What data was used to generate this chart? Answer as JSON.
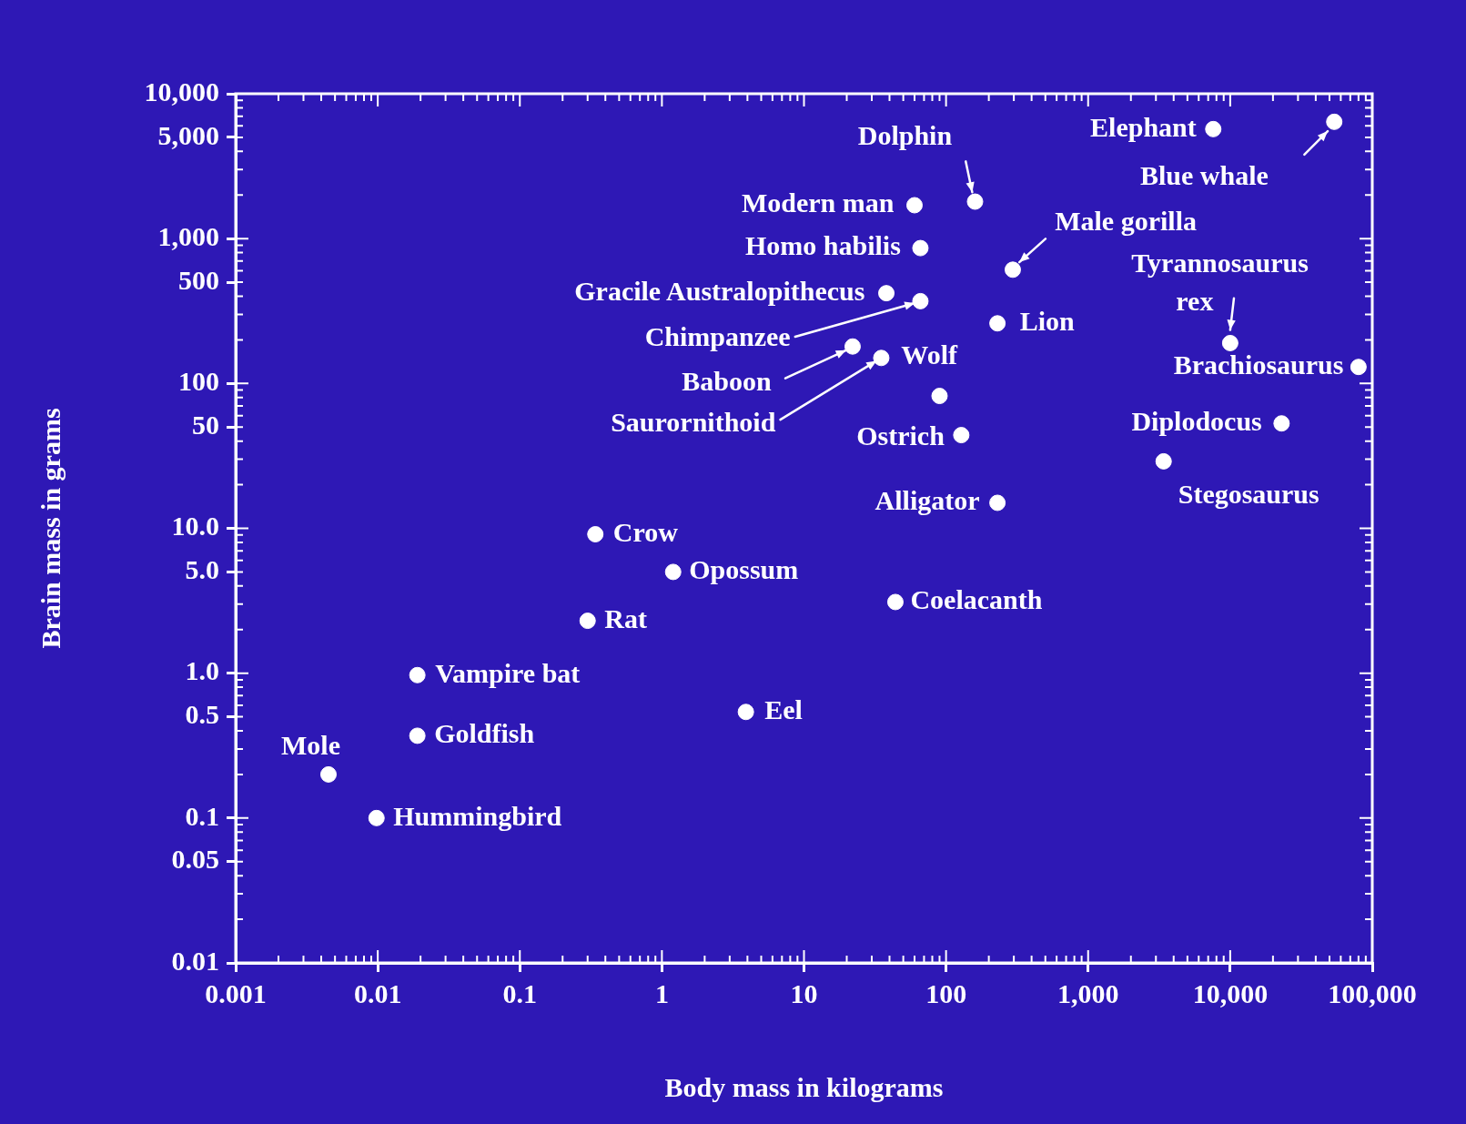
{
  "chart_data": {
    "type": "scatter",
    "xlabel": "Body mass in kilograms",
    "ylabel": "Brain mass in grams",
    "x": [
      7600,
      54000,
      160,
      60,
      66,
      295,
      38,
      66,
      230,
      10000,
      22,
      35,
      90,
      80000,
      23000,
      128,
      3400,
      230,
      0.34,
      1.2,
      44,
      0.3,
      0.019,
      3.9,
      0.019,
      0.0045,
      0.0098
    ],
    "values": [
      5700,
      6400,
      1800,
      1700,
      860,
      610,
      420,
      370,
      260,
      190,
      180,
      150,
      82,
      130,
      53,
      44,
      29,
      15,
      9.1,
      5.0,
      3.1,
      2.3,
      0.97,
      0.54,
      0.37,
      0.2,
      0.1
    ],
    "color": "#ffffff",
    "marker": "circle",
    "log": "xy",
    "grid": false,
    "legend": false,
    "xlim": [
      0.001,
      100000
    ],
    "ylim": [
      0.01,
      10000
    ],
    "xticks": [
      0.001,
      0.01,
      0.1,
      1,
      10,
      100,
      {
        "value": 1000,
        "label": "1,000"
      },
      {
        "value": 10000,
        "label": "10,000"
      },
      {
        "value": 100000,
        "label": "100,000"
      }
    ],
    "yticks": [
      0.01,
      0.05,
      0.1,
      0.5,
      {
        "value": 1,
        "label": "1.0"
      },
      {
        "value": 5,
        "label": "5.0"
      },
      {
        "value": 10,
        "label": "10.0"
      },
      50,
      100,
      500,
      {
        "value": 1000,
        "label": "1,000"
      },
      {
        "value": 5000,
        "label": "5,000"
      },
      {
        "value": 10000,
        "label": "10,000"
      }
    ],
    "annotations": [
      {
        "text": "Elephant",
        "x": 7600,
        "y": 5700
      },
      {
        "text": "Blue whale",
        "x": 54000,
        "y": 6400
      },
      {
        "text": "Dolphin",
        "x": 160,
        "y": 1800
      },
      {
        "text": "Modern man",
        "x": 60,
        "y": 1700
      },
      {
        "text": "Homo habilis",
        "x": 66,
        "y": 860
      },
      {
        "text": "Male gorilla",
        "x": 295,
        "y": 610
      },
      {
        "text": "Gracile Australopithecus",
        "x": 38,
        "y": 420
      },
      {
        "text": "Chimpanzee",
        "x": 66,
        "y": 370
      },
      {
        "text": "Lion",
        "x": 230,
        "y": 260
      },
      {
        "text": "Tyrannosaurus rex",
        "x": 10000,
        "y": 190
      },
      {
        "text": "Baboon",
        "x": 22,
        "y": 180
      },
      {
        "text": "Saurornithoid",
        "x": 35,
        "y": 150
      },
      {
        "text": "Wolf",
        "x": 90,
        "y": 82
      },
      {
        "text": "Brachiosaurus",
        "x": 80000,
        "y": 130
      },
      {
        "text": "Diplodocus",
        "x": 23000,
        "y": 53
      },
      {
        "text": "Ostrich",
        "x": 128,
        "y": 44
      },
      {
        "text": "Stegosaurus",
        "x": 3400,
        "y": 29
      },
      {
        "text": "Alligator",
        "x": 230,
        "y": 15
      },
      {
        "text": "Crow",
        "x": 0.34,
        "y": 9.1
      },
      {
        "text": "Opossum",
        "x": 1.2,
        "y": 5.0
      },
      {
        "text": "Coelacanth",
        "x": 44,
        "y": 3.1
      },
      {
        "text": "Rat",
        "x": 0.3,
        "y": 2.3
      },
      {
        "text": "Vampire bat",
        "x": 0.019,
        "y": 0.97
      },
      {
        "text": "Eel",
        "x": 3.9,
        "y": 0.54
      },
      {
        "text": "Goldfish",
        "x": 0.019,
        "y": 0.37
      },
      {
        "text": "Mole",
        "x": 0.0045,
        "y": 0.2
      },
      {
        "text": "Hummingbird",
        "x": 0.0098,
        "y": 0.1
      }
    ]
  }
}
